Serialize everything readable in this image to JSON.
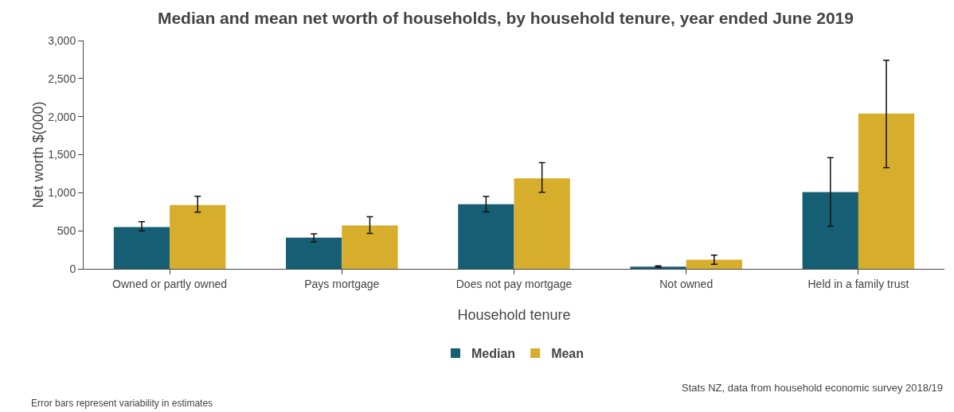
{
  "chart_data": {
    "type": "bar",
    "title": "Median and mean net worth of households, by household tenure, year ended June 2019",
    "xlabel": "Household tenure",
    "ylabel": "Net worth $(000)",
    "categories": [
      "Owned or partly owned",
      "Pays mortgage",
      "Does not pay mortgage",
      "Not owned",
      "Held in a family trust"
    ],
    "series": [
      {
        "name": "Median",
        "color": "#165e73",
        "values": [
          550,
          410,
          850,
          30,
          1010
        ],
        "errors": [
          [
            500,
            620
          ],
          [
            355,
            460
          ],
          [
            750,
            950
          ],
          [
            20,
            40
          ],
          [
            560,
            1460
          ]
        ]
      },
      {
        "name": "Mean",
        "color": "#d6ae2c",
        "values": [
          840,
          570,
          1190,
          120,
          2040
        ],
        "errors": [
          [
            745,
            955
          ],
          [
            465,
            685
          ],
          [
            1005,
            1395
          ],
          [
            60,
            180
          ],
          [
            1330,
            2740
          ]
        ]
      }
    ],
    "ylim": [
      0,
      3000
    ],
    "yticks": [
      {
        "value": 0,
        "label": "0"
      },
      {
        "value": 500,
        "label": "500"
      },
      {
        "value": 1000,
        "label": "1,000"
      },
      {
        "value": 1500,
        "label": "1,500"
      },
      {
        "value": 2000,
        "label": "2,000"
      },
      {
        "value": 2500,
        "label": "2,500"
      },
      {
        "value": 3000,
        "label": "3,000"
      }
    ],
    "grid": false,
    "legend": "bottom",
    "annotations": [
      "Stats NZ, data from household economic survey 2018/19",
      "Error bars represent variability in estimates"
    ]
  }
}
